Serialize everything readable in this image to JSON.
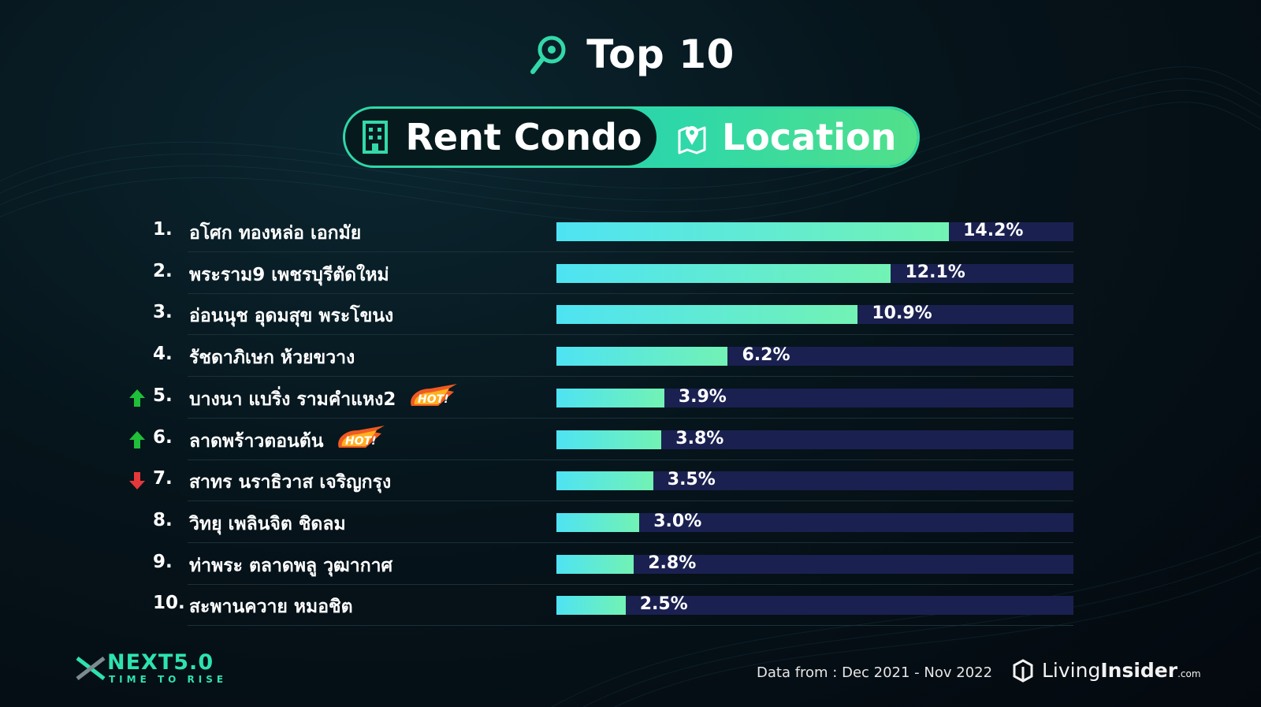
{
  "header": {
    "title": "Top 10",
    "left_label": "Rent Condo",
    "right_label": "Location"
  },
  "chart_data": {
    "type": "bar",
    "orientation": "horizontal",
    "categories": [
      "อโศก ทองหล่อ เอกมัย",
      "พระราม9 เพชรบุรีตัดใหม่",
      "อ่อนนุช อุดมสุข พระโขนง",
      "รัชดาภิเษก ห้วยขวาง",
      "บางนา แบริ่ง รามคำแหง2",
      "ลาดพร้าวตอนต้น",
      "สาทร นราธิวาส เจริญกรุง",
      "วิทยุ เพลินจิต ชิดลม",
      "ท่าพระ ตลาดพลู วุฒากาศ",
      "สะพานควาย หมอชิต"
    ],
    "ranks": [
      "1.",
      "2.",
      "3.",
      "4.",
      "5.",
      "6.",
      "7.",
      "8.",
      "9.",
      "10."
    ],
    "values": [
      14.2,
      12.1,
      10.9,
      6.2,
      3.9,
      3.8,
      3.5,
      3.0,
      2.8,
      2.5
    ],
    "value_labels": [
      "14.2%",
      "12.1%",
      "10.9%",
      "6.2%",
      "3.9%",
      "3.8%",
      "3.5%",
      "3.0%",
      "2.8%",
      "2.5%"
    ],
    "trend": [
      "",
      "",
      "",
      "",
      "up",
      "up",
      "down",
      "",
      "",
      ""
    ],
    "hot": [
      false,
      false,
      false,
      false,
      true,
      true,
      false,
      false,
      false,
      false
    ],
    "hot_badge_text": "HOT!",
    "xlim": [
      0,
      18.7
    ],
    "colors": {
      "bar_start": "#4ee3f3",
      "bar_end": "#72f2b4",
      "track": "#1a2150",
      "up": "#1fbf3a",
      "down": "#e5383b"
    }
  },
  "footer": {
    "logo_main": "NEXT5.0",
    "logo_sub": "TIME TO RISE",
    "data_from": "Data from : Dec 2021 - Nov 2022",
    "brand_a": "Living",
    "brand_b": "Insider",
    "brand_c": ".com"
  }
}
